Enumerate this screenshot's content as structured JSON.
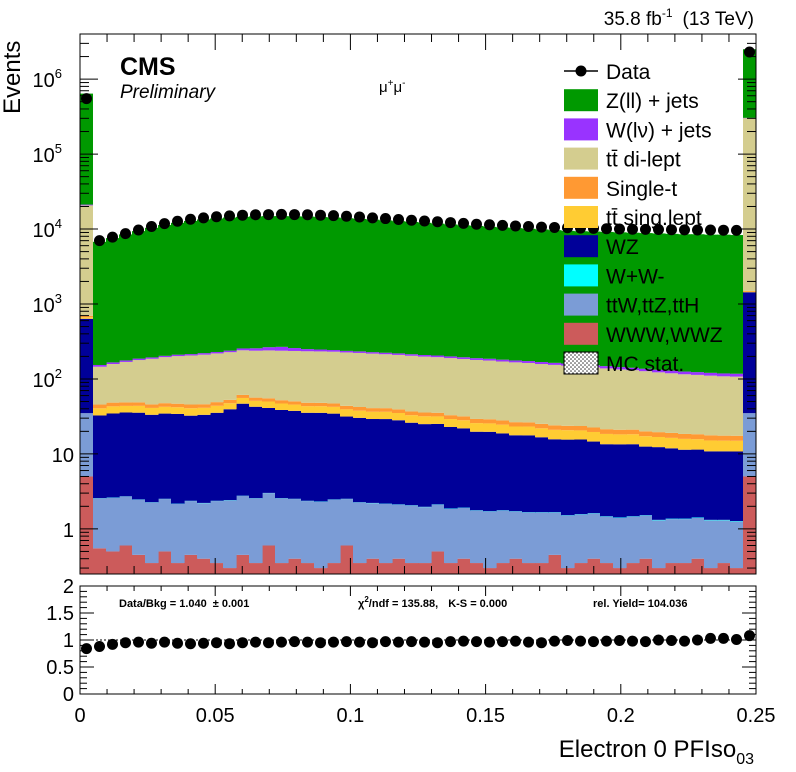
{
  "header": {
    "lumi": "35.8 fb",
    "lumi_exp": "-1",
    "energy": "(13 TeV)",
    "cms": "CMS",
    "preliminary": "Preliminary",
    "channel": "μ",
    "channel_sup1": "+",
    "channel_mid": "μ",
    "channel_sup2": "-"
  },
  "stats": {
    "data_bkg": "Data/Bkg = 1.040",
    "data_bkg_err": "± 0.001",
    "chi2": "χ",
    "chi2_sup": "2",
    "chi2_rest": "/ndf = 135.88,",
    "ks": "K-S = 0.000",
    "yield": "rel. Yield= 104.036"
  },
  "colors": {
    "zjets": "#009900",
    "wjets": "#9933ff",
    "ttdilep": "#d4cd8f",
    "singlet": "#ff9933",
    "ttsinglep": "#ffcc33",
    "wz": "#000099",
    "ww": "#00ffff",
    "ttv": "#7b9cd6",
    "vvv": "#cc5b5b"
  },
  "chart_data": {
    "type": "area",
    "main": {
      "ylabel": "Events",
      "yscale": "log",
      "ylim": [
        0.25,
        4000000
      ],
      "yticks": [
        {
          "v": 1,
          "label": "1"
        },
        {
          "v": 10,
          "label": "10"
        },
        {
          "v": 100,
          "label": "10",
          "exp": "2"
        },
        {
          "v": 1000,
          "label": "10",
          "exp": "3"
        },
        {
          "v": 10000,
          "label": "10",
          "exp": "4"
        },
        {
          "v": 100000,
          "label": "10",
          "exp": "5"
        },
        {
          "v": 1000000,
          "label": "10",
          "exp": "6"
        }
      ]
    },
    "xlim": [
      0,
      0.25
    ],
    "xlabel": "Electron 0 PFIso",
    "xlabel_sub": "03",
    "xticks": [
      {
        "v": 0,
        "label": "0"
      },
      {
        "v": 0.05,
        "label": "0.05"
      },
      {
        "v": 0.1,
        "label": "0.1"
      },
      {
        "v": 0.15,
        "label": "0.15"
      },
      {
        "v": 0.2,
        "label": "0.2"
      },
      {
        "v": 0.25,
        "label": "0.25"
      }
    ],
    "legend": {
      "placement": "top-right",
      "entries": [
        {
          "key": "data",
          "label": "Data",
          "style": "marker"
        },
        {
          "key": "zjets",
          "label": "Z(ll) + jets",
          "style": "fill"
        },
        {
          "key": "wjets",
          "label": "W(lν) + jets",
          "style": "fill"
        },
        {
          "key": "ttdilep",
          "label": "tt̄ di-lept",
          "style": "fill"
        },
        {
          "key": "singlet",
          "label": "Single-t",
          "style": "fill"
        },
        {
          "key": "ttsinglep",
          "label": "tt̄ sing.lept",
          "style": "fill"
        },
        {
          "key": "wz",
          "label": "WZ",
          "style": "fill"
        },
        {
          "key": "ww",
          "label": "W+W-",
          "style": "fill"
        },
        {
          "key": "ttv",
          "label": "ttW,ttZ,ttH",
          "style": "fill"
        },
        {
          "key": "vvv",
          "label": "WWW,WWZ",
          "style": "fill"
        },
        {
          "key": "mcstat",
          "label": "MC stat.",
          "style": "hatch"
        }
      ]
    },
    "bins": 50,
    "bin_width": 0.005,
    "stack_order": [
      "vvv",
      "ttv",
      "ww",
      "wz",
      "ttsinglep",
      "singlet",
      "ttdilep",
      "wjets",
      "zjets"
    ],
    "edges": {
      "first": {
        "vvv": 5,
        "ttv": 30,
        "ww": 0,
        "wz": 600,
        "ttsinglep": 30,
        "singlet": 30,
        "ttdilep": 20000,
        "wjets": 500,
        "zjets": 620000
      },
      "last": {
        "vvv": 5,
        "ttv": 30,
        "ww": 0,
        "wz": 1400,
        "ttsinglep": 30,
        "singlet": 30,
        "ttdilep": 300000,
        "wjets": 3000,
        "zjets": 2200000
      }
    },
    "data_first": 550000,
    "data_last": 2300000,
    "series": [
      {
        "name": "WWW,WWZ",
        "key": "vvv",
        "values": [
          0.55,
          0.5,
          0.6,
          0.45,
          0.35,
          0.5,
          0.35,
          0.45,
          0.4,
          0.35,
          0.3,
          0.45,
          0.35,
          0.6,
          0.35,
          0.4,
          0.35,
          0.3,
          0.35,
          0.6,
          0.35,
          0.4,
          0.35,
          0.4,
          0.35,
          0.35,
          0.5,
          0.35,
          0.4,
          0.35,
          0.3,
          0.35,
          0.4,
          0.35,
          0.35,
          0.45,
          0.3,
          0.35,
          0.4,
          0.35,
          0.3,
          0.35,
          0.4,
          0.3,
          0.35,
          0.35,
          0.4,
          0.3,
          0.35,
          0.3
        ]
      },
      {
        "name": "ttW,ttZ,ttH",
        "key": "ttv",
        "values": [
          2.0,
          2.1,
          2.1,
          2.0,
          1.9,
          2.0,
          1.8,
          1.9,
          1.8,
          2.0,
          2.1,
          2.3,
          2.2,
          2.4,
          2.2,
          2.1,
          2.0,
          2.0,
          2.1,
          1.9,
          1.9,
          1.8,
          1.8,
          1.7,
          1.7,
          1.6,
          1.6,
          1.5,
          1.5,
          1.4,
          1.4,
          1.4,
          1.3,
          1.3,
          1.3,
          1.2,
          1.2,
          1.2,
          1.2,
          1.1,
          1.1,
          1.1,
          1.1,
          1.0,
          1.0,
          1.0,
          1.0,
          1.0,
          0.95,
          0.95
        ]
      },
      {
        "name": "W+W-",
        "key": "ww",
        "values": [
          0.02,
          0.02,
          0.02,
          0.02,
          0.02,
          0.02,
          0.02,
          0.02,
          0.02,
          0.02,
          0.02,
          0.02,
          0.02,
          0.02,
          0.02,
          0.02,
          0.02,
          0.02,
          0.02,
          0.02,
          0.02,
          0.02,
          0.02,
          0.02,
          0.02,
          0.02,
          0.02,
          0.02,
          0.02,
          0.02,
          0.02,
          0.02,
          0.02,
          0.02,
          0.02,
          0.02,
          0.02,
          0.02,
          0.02,
          0.02,
          0.02,
          0.02,
          0.02,
          0.02,
          0.02,
          0.02,
          0.02,
          0.02,
          0.02,
          0.02
        ]
      },
      {
        "name": "WZ",
        "key": "wz",
        "values": [
          30,
          32,
          33,
          33,
          31,
          32,
          32,
          30,
          31,
          33,
          37,
          44,
          40,
          38,
          36,
          35,
          33,
          33,
          32,
          29,
          28,
          27,
          27,
          26,
          24,
          23,
          23,
          21,
          20,
          18,
          18,
          17,
          16,
          16,
          15,
          14,
          14,
          14,
          13,
          12,
          12,
          12,
          11,
          11,
          10.5,
          10,
          10,
          9.5,
          9.5,
          9.5
        ]
      },
      {
        "name": "tt̄ sing.lept",
        "key": "ttsinglep",
        "values": [
          8,
          8.5,
          8,
          8.3,
          7.8,
          8,
          7.8,
          8.3,
          8,
          8.5,
          8,
          9,
          8.5,
          9,
          8.5,
          8,
          8,
          8,
          8,
          7.8,
          7.5,
          7.3,
          7.3,
          7,
          6.8,
          6.8,
          6.5,
          6.3,
          6.2,
          6,
          5.8,
          5.8,
          5.5,
          5.5,
          5.3,
          5.3,
          5.2,
          5,
          5,
          5,
          4.8,
          4.8,
          4.7,
          4.5,
          4.5,
          4.5,
          4.3,
          4.3,
          4.2,
          4.2
        ]
      },
      {
        "name": "Single-t",
        "key": "singlet",
        "values": [
          5,
          5.2,
          5,
          5,
          4.8,
          5,
          4.8,
          5,
          4.8,
          5.2,
          5.2,
          5.5,
          5.3,
          5.2,
          5,
          4.8,
          4.8,
          4.7,
          4.7,
          4.5,
          4.5,
          4.3,
          4.3,
          4.2,
          4,
          3.9,
          3.8,
          3.7,
          3.6,
          3.5,
          3.5,
          3.4,
          3.3,
          3.2,
          3.2,
          3.1,
          3,
          3,
          2.9,
          2.9,
          2.8,
          2.8,
          2.8,
          2.7,
          2.7,
          2.6,
          2.6,
          2.6,
          2.5,
          2.5
        ]
      },
      {
        "name": "tt̄ di-lept",
        "key": "ttdilep",
        "values": [
          100,
          110,
          120,
          130,
          140,
          148,
          155,
          160,
          165,
          170,
          175,
          180,
          182,
          185,
          186,
          186,
          186,
          185,
          184,
          182,
          180,
          177,
          173,
          170,
          167,
          163,
          160,
          157,
          153,
          150,
          147,
          143,
          140,
          137,
          133,
          130,
          127,
          123,
          120,
          117,
          113,
          110,
          107,
          103,
          100,
          97,
          95,
          93,
          91,
          90
        ]
      },
      {
        "name": "W(lν) + jets",
        "key": "wjets",
        "values": [
          8,
          8,
          8,
          8,
          8,
          8,
          9,
          9,
          10,
          10,
          11,
          14,
          18,
          25,
          30,
          22,
          16,
          14,
          12,
          11,
          11,
          10,
          10,
          10,
          10,
          10,
          10,
          10,
          10,
          10,
          10,
          10,
          10,
          10,
          10,
          10,
          10,
          10,
          10,
          10,
          10,
          10,
          10,
          10,
          10,
          10,
          10,
          10,
          10,
          10
        ]
      },
      {
        "name": "Z(ll) + jets",
        "key": "zjets",
        "values": [
          6600,
          7400,
          8300,
          9200,
          10200,
          11100,
          11900,
          12600,
          13200,
          13600,
          14000,
          14300,
          14500,
          14600,
          14600,
          14500,
          14400,
          14200,
          14000,
          13700,
          13400,
          13100,
          12800,
          12500,
          12200,
          11900,
          11600,
          11300,
          11000,
          10800,
          10500,
          10300,
          10100,
          9900,
          9700,
          9500,
          9300,
          9200,
          9100,
          9000,
          8900,
          8800,
          8700,
          8600,
          8500,
          8400,
          8400,
          8300,
          8300,
          8200
        ]
      },
      {
        "name": "Data",
        "key": "data",
        "values": [
          7000,
          7800,
          8700,
          9700,
          10800,
          11800,
          12700,
          13500,
          14100,
          14600,
          15000,
          15300,
          15500,
          15600,
          15700,
          15600,
          15500,
          15300,
          15100,
          14800,
          14500,
          14100,
          13800,
          13400,
          13100,
          12800,
          12500,
          12200,
          11900,
          11600,
          11400,
          11200,
          11000,
          10800,
          10600,
          10500,
          10400,
          10300,
          10200,
          10100,
          10000,
          9950,
          9900,
          9850,
          9800,
          9750,
          9700,
          9700,
          9650,
          9600
        ]
      }
    ],
    "ratio": {
      "ylim": [
        0,
        2
      ],
      "yticks": [
        {
          "v": 0,
          "label": "0"
        },
        {
          "v": 0.5,
          "label": "0.5"
        },
        {
          "v": 1,
          "label": "1"
        },
        {
          "v": 1.5,
          "label": "1.5"
        },
        {
          "v": 2,
          "label": "2"
        }
      ],
      "reference": 1,
      "first": 0.84,
      "last": 1.08,
      "values": [
        0.88,
        0.92,
        0.95,
        0.96,
        0.94,
        0.96,
        0.94,
        0.93,
        0.94,
        0.95,
        0.93,
        0.95,
        0.96,
        0.95,
        0.96,
        0.97,
        0.96,
        0.95,
        0.96,
        0.97,
        0.96,
        0.95,
        0.97,
        0.96,
        0.97,
        0.96,
        0.95,
        0.97,
        0.98,
        0.97,
        0.96,
        0.97,
        0.98,
        0.96,
        0.95,
        0.98,
        0.99,
        0.98,
        0.97,
        0.98,
        0.99,
        0.98,
        0.97,
        1.0,
        0.99,
        0.98,
        1.0,
        1.03,
        1.03,
        1.01
      ]
    }
  }
}
